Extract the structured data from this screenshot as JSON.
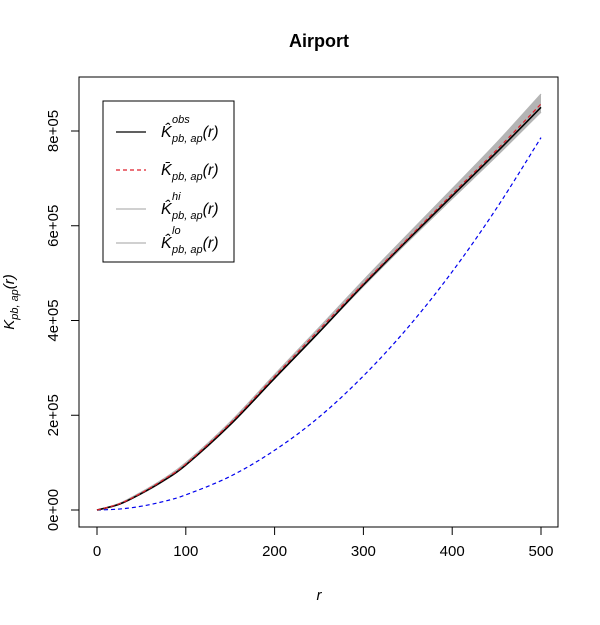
{
  "chart_data": {
    "type": "line",
    "title": "Airport",
    "xlabel": "r",
    "ylabel": "K_{pb, ap}(r)",
    "xlim": [
      0,
      500
    ],
    "ylim": [
      0,
      880000
    ],
    "xticks": [
      0,
      100,
      200,
      300,
      400,
      500
    ],
    "xtick_labels": [
      "0",
      "100",
      "200",
      "300",
      "400",
      "500"
    ],
    "yticks": [
      0,
      200000,
      400000,
      600000,
      800000
    ],
    "ytick_labels": [
      "0e+00",
      "2e+05",
      "4e+05",
      "6e+05",
      "8e+05"
    ],
    "grid": false,
    "legend_position": "top-left",
    "x": [
      0,
      25,
      50,
      75,
      100,
      150,
      200,
      250,
      300,
      350,
      400,
      450,
      500
    ],
    "series": [
      {
        "name": "K̂^obs_pb,ap(r)",
        "color": "#000000",
        "style": "solid",
        "values": [
          0,
          12000,
          35000,
          62000,
          95000,
          180000,
          278000,
          375000,
          475000,
          570000,
          663000,
          755000,
          850000
        ]
      },
      {
        "name": "K̄_pb,ap(r)",
        "color": "#df1f2b",
        "style": "dashed",
        "values": [
          0,
          13000,
          36000,
          64000,
          97000,
          183000,
          282000,
          380000,
          478000,
          573000,
          667000,
          760000,
          857000
        ]
      },
      {
        "name": "K̂^hi_pb,ap(r)",
        "color": "#b4b4b4",
        "style": "solid",
        "values": [
          0,
          14000,
          38000,
          66000,
          100000,
          186000,
          286000,
          385000,
          485000,
          582000,
          678000,
          775000,
          878000
        ]
      },
      {
        "name": "K̂^lo_pb,ap(r)",
        "color": "#b4b4b4",
        "style": "solid",
        "values": [
          0,
          12000,
          34000,
          61000,
          94000,
          179000,
          278000,
          375000,
          472000,
          566000,
          657000,
          747000,
          840000
        ]
      },
      {
        "name": "",
        "color": "#0000ee",
        "style": "dashed",
        "values": [
          0,
          2000,
          8000,
          18000,
          32000,
          71000,
          126000,
          196000,
          283000,
          385000,
          503000,
          637000,
          786000
        ]
      }
    ],
    "legend": [
      {
        "main": "K̂",
        "sup": "obs",
        "sub": "pb, ap",
        "arg": "(r)",
        "color": "#000000",
        "style": "solid"
      },
      {
        "main": "K̄",
        "sup": "",
        "sub": "pb, ap",
        "arg": "(r)",
        "color": "#df1f2b",
        "style": "dashed"
      },
      {
        "main": "K̂",
        "sup": "hi",
        "sub": "pb, ap",
        "arg": "(r)",
        "color": "#b4b4b4",
        "style": "solid"
      },
      {
        "main": "K̂",
        "sup": "lo",
        "sub": "pb, ap",
        "arg": "(r)",
        "color": "#b4b4b4",
        "style": "solid"
      }
    ],
    "ylabel_parts": {
      "main": "K",
      "sub": "pb, ap",
      "arg": "(r)"
    }
  }
}
